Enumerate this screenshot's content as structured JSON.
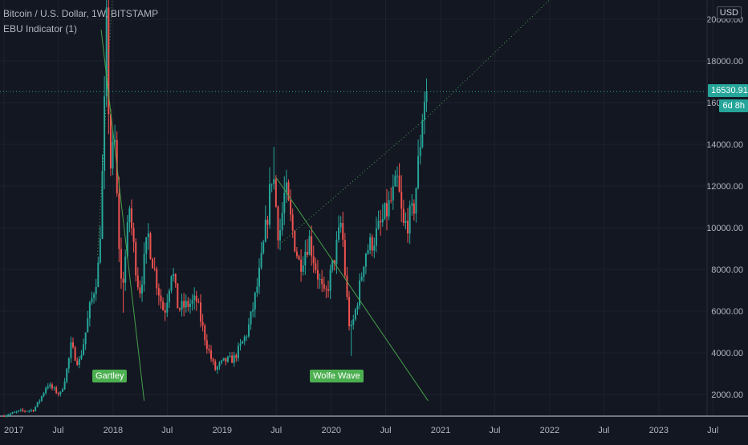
{
  "legend": {
    "title": "Bitcoin / U.S. Dollar, 1W, BITSTAMP",
    "indicator": "EBU Indicator (1)"
  },
  "currency": "USD",
  "current_price": "16530.91",
  "countdown": "6d 8h",
  "patterns": [
    {
      "label": "Gartley",
      "color": "#4caf50"
    },
    {
      "label": "Wolfe Wave",
      "color": "#4caf50"
    }
  ],
  "colors": {
    "background": "#131722",
    "up": "#26a69a",
    "down": "#ef5350",
    "grid": "#1e222d",
    "pattern_line": "#4caf50",
    "price_line": "#26a69a"
  },
  "chart_data": {
    "type": "candlestick",
    "title": "Bitcoin / U.S. Dollar, 1W, BITSTAMP",
    "y_ticks": [
      2000,
      4000,
      6000,
      8000,
      10000,
      12000,
      14000,
      16000,
      18000,
      20000
    ],
    "y_tick_labels": [
      "2000.00",
      "4000.00",
      "6000.00",
      "8000.00",
      "10000.00",
      "12000.00",
      "14000.00",
      "16000.00",
      "18000.00",
      "20000.00"
    ],
    "x_ticks": [
      "2017",
      "Jul",
      "2018",
      "Jul",
      "2019",
      "Jul",
      "2020",
      "Jul",
      "2021",
      "Jul",
      "2022",
      "Jul",
      "2023",
      "Jul"
    ],
    "ylim": [
      800,
      21000
    ],
    "last_price": 16530.91,
    "price_path": [
      [
        "2017-01-01",
        970
      ],
      [
        "2017-03-01",
        1200
      ],
      [
        "2017-04-15",
        1250
      ],
      [
        "2017-06-01",
        2500
      ],
      [
        "2017-07-15",
        2000
      ],
      [
        "2017-08-20",
        4300
      ],
      [
        "2017-09-15",
        3500
      ],
      [
        "2017-10-20",
        6000
      ],
      [
        "2017-11-20",
        8200
      ],
      [
        "2017-12-17",
        19500
      ],
      [
        "2017-12-31",
        13000
      ],
      [
        "2018-01-14",
        14000
      ],
      [
        "2018-02-06",
        7000
      ],
      [
        "2018-03-04",
        11000
      ],
      [
        "2018-04-06",
        6900
      ],
      [
        "2018-05-05",
        9700
      ],
      [
        "2018-06-28",
        5900
      ],
      [
        "2018-07-24",
        8200
      ],
      [
        "2018-08-14",
        6100
      ],
      [
        "2018-10-15",
        6500
      ],
      [
        "2018-11-20",
        4300
      ],
      [
        "2018-12-15",
        3200
      ],
      [
        "2019-01-15",
        3600
      ],
      [
        "2019-02-15",
        3700
      ],
      [
        "2019-04-02",
        5000
      ],
      [
        "2019-05-15",
        8000
      ],
      [
        "2019-06-26",
        13000
      ],
      [
        "2019-07-17",
        9500
      ],
      [
        "2019-08-07",
        11900
      ],
      [
        "2019-09-24",
        8200
      ],
      [
        "2019-10-26",
        9500
      ],
      [
        "2019-12-17",
        6600
      ],
      [
        "2020-02-12",
        10400
      ],
      [
        "2020-03-12",
        4900
      ],
      [
        "2020-04-29",
        8800
      ],
      [
        "2020-06-01",
        9500
      ],
      [
        "2020-07-27",
        11300
      ],
      [
        "2020-08-17",
        12200
      ],
      [
        "2020-09-05",
        10000
      ],
      [
        "2020-10-08",
        10700
      ],
      [
        "2020-10-25",
        13000
      ],
      [
        "2020-11-08",
        15500
      ],
      [
        "2020-11-17",
        16530
      ]
    ],
    "extremes": [
      [
        "2017-12-17",
        19666
      ],
      [
        "2018-02-06",
        5920
      ],
      [
        "2018-12-15",
        3122
      ],
      [
        "2019-06-26",
        13880
      ],
      [
        "2020-03-12",
        3850
      ],
      [
        "2020-08-17",
        12470
      ]
    ],
    "annotations": [
      {
        "type": "pattern",
        "label": "Gartley",
        "date": "2018-01-12",
        "price": 2850
      },
      {
        "type": "pattern",
        "label": "Wolfe Wave",
        "date": "2020-01-10",
        "price": 2850
      },
      {
        "type": "trendline",
        "points": [
          [
            "2017-11-22",
            19500
          ],
          [
            "2018-04-15",
            1700
          ]
        ]
      },
      {
        "type": "trendline",
        "points": [
          [
            "2019-07-01",
            12400
          ],
          [
            "2020-11-20",
            1700
          ]
        ]
      },
      {
        "type": "trendline_dotted",
        "points": [
          [
            "2019-07-20",
            9300
          ],
          [
            "2020-11-17",
            15300
          ],
          [
            "2022-08-20",
            24100
          ]
        ]
      },
      {
        "type": "trendline_dotted",
        "points": [
          [
            "2017-11-10",
            8700
          ],
          [
            "2018-01-05",
            22700
          ]
        ]
      }
    ]
  }
}
